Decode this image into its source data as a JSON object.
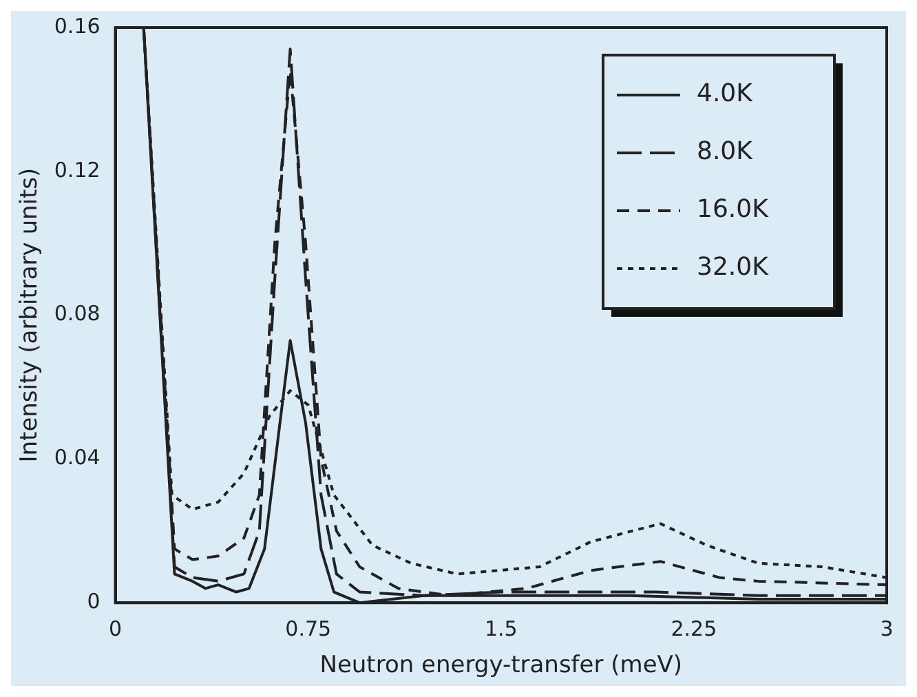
{
  "chart_data": {
    "type": "line",
    "xlabel": "Neutron energy-transfer (meV)",
    "ylabel": "Intensity (arbitrary units)",
    "xlim": [
      0,
      3
    ],
    "ylim": [
      0,
      0.16
    ],
    "xticks": [
      0,
      0.75,
      1.5,
      2.25,
      3
    ],
    "yticks": [
      0,
      0.04,
      0.08,
      0.12,
      0.16
    ],
    "grid": false,
    "legend": "top right",
    "marker": "none",
    "series": [
      {
        "name": "4.0K",
        "color": "#222222",
        "line_style": "solid",
        "x": [
          0.11,
          0.23,
          0.3,
          0.35,
          0.4,
          0.47,
          0.52,
          0.58,
          0.64,
          0.68,
          0.74,
          0.8,
          0.85,
          0.95,
          1.2,
          1.5,
          2.0,
          2.5,
          3.0
        ],
        "values": [
          0.16,
          0.008,
          0.006,
          0.004,
          0.005,
          0.003,
          0.004,
          0.015,
          0.05,
          0.073,
          0.05,
          0.015,
          0.003,
          0.0,
          0.002,
          0.002,
          0.002,
          0.001,
          0.001
        ]
      },
      {
        "name": "8.0K",
        "color": "#222222",
        "line_style": "dashed",
        "x": [
          0.11,
          0.23,
          0.3,
          0.4,
          0.5,
          0.56,
          0.62,
          0.68,
          0.74,
          0.8,
          0.86,
          0.95,
          1.2,
          1.5,
          2.1,
          2.5,
          3.0
        ],
        "values": [
          0.16,
          0.01,
          0.007,
          0.006,
          0.008,
          0.02,
          0.09,
          0.154,
          0.09,
          0.03,
          0.008,
          0.003,
          0.002,
          0.003,
          0.003,
          0.002,
          0.002
        ]
      },
      {
        "name": "16.0K",
        "color": "#222222",
        "line_style": "dashed",
        "x": [
          0.11,
          0.23,
          0.3,
          0.4,
          0.5,
          0.56,
          0.62,
          0.68,
          0.74,
          0.8,
          0.86,
          0.95,
          1.1,
          1.3,
          1.6,
          1.85,
          2.12,
          2.35,
          2.5,
          3.0
        ],
        "values": [
          0.16,
          0.015,
          0.012,
          0.013,
          0.018,
          0.03,
          0.1,
          0.148,
          0.1,
          0.04,
          0.02,
          0.01,
          0.004,
          0.002,
          0.004,
          0.009,
          0.0115,
          0.007,
          0.006,
          0.005
        ]
      },
      {
        "name": "32.0K",
        "color": "#222222",
        "line_style": "dotted",
        "x": [
          0.11,
          0.22,
          0.3,
          0.4,
          0.5,
          0.6,
          0.68,
          0.75,
          0.85,
          1.0,
          1.15,
          1.33,
          1.65,
          1.85,
          2.12,
          2.3,
          2.5,
          2.75,
          3.0
        ],
        "values": [
          0.16,
          0.03,
          0.026,
          0.028,
          0.036,
          0.052,
          0.059,
          0.055,
          0.03,
          0.016,
          0.011,
          0.008,
          0.01,
          0.017,
          0.022,
          0.016,
          0.011,
          0.01,
          0.007
        ]
      }
    ]
  }
}
